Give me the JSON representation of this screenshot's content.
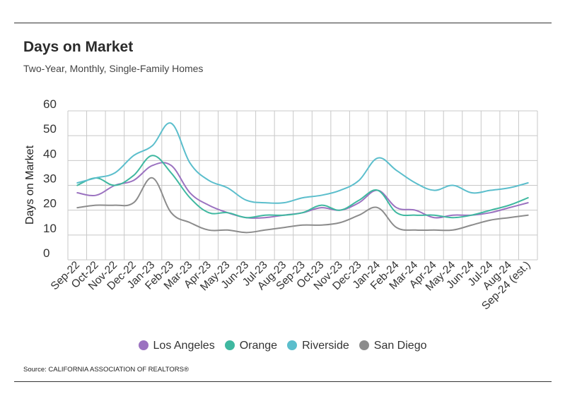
{
  "header": {
    "title": "Days on Market",
    "subtitle": "Two-Year, Monthly, Single-Family Homes"
  },
  "footer": {
    "source": "Source:  CALIFORNIA ASSOCIATION OF REALTORS®"
  },
  "chart_data": {
    "type": "line",
    "title": "Days on Market",
    "subtitle": "Two-Year, Monthly, Single-Family Homes",
    "xlabel": "",
    "ylabel": "Days on Market",
    "ylim": [
      0,
      60
    ],
    "yticks": [
      0,
      10,
      20,
      30,
      40,
      50,
      60
    ],
    "grid": true,
    "legend_position": "bottom",
    "categories": [
      "Sep-22",
      "Oct-22",
      "Nov-22",
      "Dec-22",
      "Jan-23",
      "Feb-23",
      "Mar-23",
      "Apr-23",
      "May-23",
      "Jun-23",
      "Jul-23",
      "Aug-23",
      "Sep-23",
      "Oct-23",
      "Nov-23",
      "Dec-23",
      "Jan-24",
      "Feb-24",
      "Mar-24",
      "Apr-24",
      "May-24",
      "Jun-24",
      "Jul-24",
      "Aug-24",
      "Sep-24 (est.)"
    ],
    "series": [
      {
        "name": "Los Angeles",
        "color": "#9b72c0",
        "values": [
          27,
          26,
          30,
          32,
          38,
          38,
          27,
          22,
          19,
          17,
          17,
          18,
          19,
          21,
          20,
          23,
          28,
          21,
          20,
          17,
          18,
          18,
          19,
          21,
          23
        ]
      },
      {
        "name": "Orange",
        "color": "#3fb8a0",
        "values": [
          30,
          33,
          30,
          34,
          42,
          35,
          25,
          19,
          19,
          17,
          18,
          18,
          19,
          22,
          20,
          24,
          28,
          19,
          18,
          18,
          17,
          18,
          20,
          22,
          25
        ]
      },
      {
        "name": "Riverside",
        "color": "#5bbecc",
        "values": [
          31,
          33,
          35,
          42,
          46,
          55,
          39,
          32,
          29,
          24,
          23,
          23,
          25,
          26,
          28,
          32,
          41,
          36,
          31,
          28,
          30,
          27,
          28,
          29,
          31
        ]
      },
      {
        "name": "San Diego",
        "color": "#8c8c8c",
        "values": [
          21,
          22,
          22,
          23,
          33,
          19,
          15,
          12,
          12,
          11,
          12,
          13,
          14,
          14,
          15,
          18,
          21,
          13,
          12,
          12,
          12,
          14,
          16,
          17,
          18
        ]
      }
    ]
  }
}
